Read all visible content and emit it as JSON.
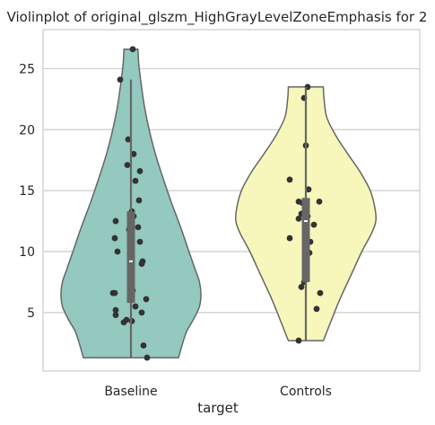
{
  "chart_data": {
    "type": "violin",
    "title": "Violinplot of original_glszm_HighGrayLevelZoneEmphasis for 2",
    "xlabel": "target",
    "ylabel": "",
    "categories": [
      "Baseline",
      "Controls"
    ],
    "yticks": [
      5,
      10,
      15,
      20,
      25
    ],
    "ylim": [
      0.2,
      28.2
    ],
    "grid": true,
    "colors": {
      "Baseline": "#93c9bf",
      "Controls": "#f7f7bb",
      "outline": "#666666",
      "point": "#333333",
      "grid": "#cccccc"
    },
    "series": [
      {
        "name": "Baseline",
        "min": 1.3,
        "max": 26.6,
        "q1": 5.8,
        "median": 9.2,
        "q3": 13.3,
        "whisker_low": 1.3,
        "whisker_high": 24.1,
        "density": [
          [
            1.3,
            0.68
          ],
          [
            2.5,
            0.74
          ],
          [
            3.5,
            0.8
          ],
          [
            4.5,
            0.9
          ],
          [
            5.5,
            0.98
          ],
          [
            6.5,
            1.0
          ],
          [
            7.5,
            0.98
          ],
          [
            8.5,
            0.92
          ],
          [
            10,
            0.83
          ],
          [
            12,
            0.71
          ],
          [
            14,
            0.58
          ],
          [
            16,
            0.46
          ],
          [
            18,
            0.35
          ],
          [
            20,
            0.26
          ],
          [
            22,
            0.19
          ],
          [
            24,
            0.14
          ],
          [
            25.5,
            0.11
          ],
          [
            26.6,
            0.1
          ]
        ],
        "points": [
          [
            0.02,
            26.6
          ],
          [
            -0.12,
            24.1
          ],
          [
            -0.03,
            19.2
          ],
          [
            0.03,
            18.0
          ],
          [
            -0.04,
            17.1
          ],
          [
            0.1,
            16.6
          ],
          [
            0.05,
            15.8
          ],
          [
            0.09,
            14.2
          ],
          [
            0.01,
            13.3
          ],
          [
            0.03,
            12.9
          ],
          [
            -0.17,
            12.5
          ],
          [
            0.08,
            12.0
          ],
          [
            -0.02,
            11.8
          ],
          [
            -0.18,
            11.1
          ],
          [
            0.1,
            10.8
          ],
          [
            -0.15,
            10.0
          ],
          [
            0.13,
            9.2
          ],
          [
            0.12,
            9.0
          ],
          [
            -0.01,
            7.2
          ],
          [
            0.02,
            6.8
          ],
          [
            -0.18,
            6.6
          ],
          [
            -0.2,
            6.6
          ],
          [
            0.01,
            6.3
          ],
          [
            0.17,
            6.1
          ],
          [
            0.05,
            5.5
          ],
          [
            -0.17,
            5.2
          ],
          [
            0.12,
            5.0
          ],
          [
            -0.17,
            4.8
          ],
          [
            -0.05,
            4.4
          ],
          [
            -0.08,
            4.2
          ],
          [
            0.01,
            4.3
          ],
          [
            0.14,
            2.3
          ],
          [
            0.18,
            1.3
          ]
        ]
      },
      {
        "name": "Controls",
        "min": 2.7,
        "max": 23.5,
        "q1": 7.5,
        "median": 12.5,
        "q3": 14.4,
        "whisker_low": 2.7,
        "whisker_high": 23.5,
        "density": [
          [
            2.7,
            0.25
          ],
          [
            4,
            0.34
          ],
          [
            6,
            0.48
          ],
          [
            8,
            0.64
          ],
          [
            10,
            0.8
          ],
          [
            11.5,
            0.94
          ],
          [
            12.5,
            1.0
          ],
          [
            13.5,
            0.99
          ],
          [
            15,
            0.92
          ],
          [
            16.5,
            0.78
          ],
          [
            18,
            0.6
          ],
          [
            19.5,
            0.43
          ],
          [
            21,
            0.3
          ],
          [
            22.5,
            0.26
          ],
          [
            23.5,
            0.25
          ]
        ],
        "points": [
          [
            0.02,
            23.5
          ],
          [
            -0.02,
            22.6
          ],
          [
            0.0,
            18.7
          ],
          [
            -0.18,
            15.9
          ],
          [
            0.03,
            15.1
          ],
          [
            -0.08,
            14.1
          ],
          [
            0.15,
            14.1
          ],
          [
            -0.04,
            14.0
          ],
          [
            0.0,
            13.4
          ],
          [
            -0.05,
            13.1
          ],
          [
            0.02,
            12.9
          ],
          [
            -0.08,
            12.7
          ],
          [
            0.09,
            12.2
          ],
          [
            -0.18,
            11.1
          ],
          [
            0.05,
            10.8
          ],
          [
            0.04,
            9.9
          ],
          [
            0.0,
            9.5
          ],
          [
            -0.02,
            7.5
          ],
          [
            -0.05,
            7.1
          ],
          [
            0.16,
            6.6
          ],
          [
            0.12,
            5.3
          ],
          [
            -0.08,
            2.7
          ]
        ]
      }
    ]
  }
}
